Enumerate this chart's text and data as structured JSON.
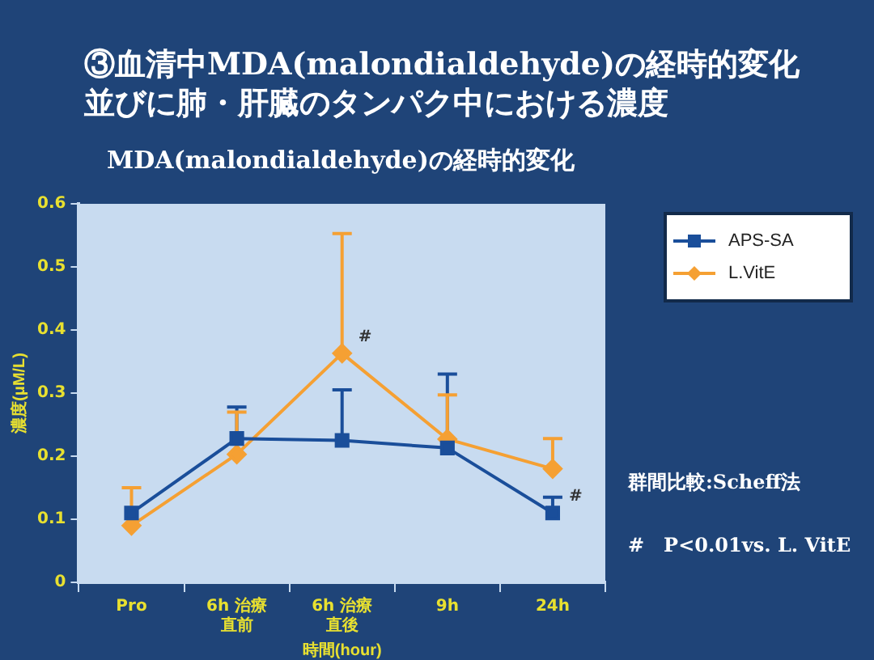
{
  "chart_data": {
    "type": "line",
    "title": "③血清中MDA(malondialdehyde)の経時的変化並びに肺・肝臓のタンパク中における濃度",
    "subtitle": "MDA(malondialdehyde)の経時的変化",
    "xlabel": "時間(hour)",
    "ylabel": "濃度(μM/L)",
    "categories": [
      "Pro",
      "6h 治療直前",
      "6h 治療直後",
      "9h",
      "24h"
    ],
    "series": [
      {
        "name": "APS-SA",
        "color": "#1a4e9a",
        "marker": "square",
        "values": [
          0.11,
          0.228,
          0.225,
          0.213,
          0.11
        ],
        "errors": [
          null,
          [
            0.228,
            0.278
          ],
          [
            0.225,
            0.305
          ],
          [
            0.213,
            0.33
          ],
          [
            0.11,
            0.135
          ]
        ]
      },
      {
        "name": "L.VitE",
        "color": "#f5a033",
        "marker": "diamond",
        "values": [
          0.09,
          0.203,
          0.363,
          0.227,
          0.18
        ],
        "errors": [
          [
            0.09,
            0.15
          ],
          [
            0.203,
            0.27
          ],
          [
            0.363,
            0.553
          ],
          [
            0.227,
            0.297
          ],
          [
            0.18,
            0.228
          ]
        ]
      }
    ],
    "ylim": [
      0,
      0.6
    ],
    "yticks": [
      0,
      0.1,
      0.2,
      0.3,
      0.4,
      0.5,
      0.6
    ],
    "grid": false,
    "legend": "top right",
    "line_style": "solid",
    "annotations": [
      {
        "text": "#",
        "x": "6h 治療直後",
        "y": 0.363
      },
      {
        "text": "#",
        "x": "24h",
        "y": 0.11
      },
      "群間比較:Scheff法",
      "#　P<0.01vs. L. VitE"
    ]
  }
}
